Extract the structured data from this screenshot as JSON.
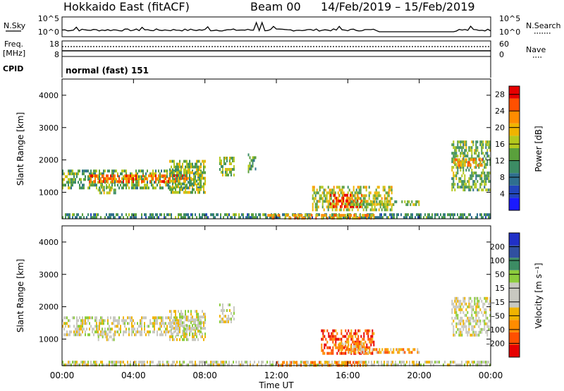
{
  "header": {
    "station": "Hokkaido East (fitACF)",
    "beam": "Beam 00",
    "date_range": "14/Feb/2019 – 15/Feb/2019"
  },
  "status": {
    "nsky_label": "N.Sky",
    "nsky_ticks": [
      "10^5",
      "10^0"
    ],
    "nsky_right_ticks": [
      "10^5",
      "10^0"
    ],
    "nsearch_label": "N.Search",
    "freq_label_1": "Freq.",
    "freq_label_2": "[MHz]",
    "freq_ticks": [
      "18",
      "8"
    ],
    "nave_ticks": [
      "60",
      "0"
    ],
    "nave_label": "Nave",
    "cpid_label": "CPID",
    "cpid_value": "normal (fast) 151"
  },
  "colors": {
    "power_scale": [
      "#1a1aff",
      "#2244bb",
      "#2f6f8f",
      "#3c8c64",
      "#5aa03c",
      "#b4c81e",
      "#f0b400",
      "#ff8c00",
      "#ff5000",
      "#e60000"
    ],
    "velocity_scale": [
      "#e60000",
      "#ff5000",
      "#ff8c00",
      "#f0b400",
      "#c8c8c0",
      "#c8c8c0",
      "#8ccc3c",
      "#3c8c64",
      "#3050a0",
      "#2030c8"
    ],
    "ground_scatter": "#c8c8c0"
  },
  "chart_data": [
    {
      "type": "heatmap",
      "panel": "power",
      "ylabel": "Slant Range [km]",
      "yticks": [
        "1000",
        "2000",
        "3000",
        "4000"
      ],
      "ylim": [
        180,
        4500
      ],
      "xlim": [
        0,
        24
      ],
      "colorbar_label": "Power [dB]",
      "colorbar_ticks": [
        "4",
        "8",
        "12",
        "16",
        "20",
        "24",
        "28"
      ],
      "colorbar_range": [
        0,
        30
      ],
      "regions": [
        {
          "t0": 0.0,
          "t1": 7.8,
          "r0": 1100,
          "r1": 1700,
          "level": 0.45
        },
        {
          "t0": 1.5,
          "t1": 7.0,
          "r0": 1300,
          "r1": 1550,
          "level": 0.8
        },
        {
          "t0": 2.0,
          "t1": 3.0,
          "r0": 950,
          "r1": 1200,
          "level": 0.5
        },
        {
          "t0": 6.0,
          "t1": 8.0,
          "r0": 1000,
          "r1": 2000,
          "level": 0.5
        },
        {
          "t0": 8.8,
          "t1": 9.6,
          "r0": 1500,
          "r1": 2100,
          "level": 0.5
        },
        {
          "t0": 10.4,
          "t1": 10.8,
          "r0": 1600,
          "r1": 2200,
          "level": 0.4
        },
        {
          "t0": 14.0,
          "t1": 18.5,
          "r0": 500,
          "r1": 1200,
          "level": 0.55
        },
        {
          "t0": 15.0,
          "t1": 16.8,
          "r0": 600,
          "r1": 950,
          "level": 0.85
        },
        {
          "t0": 16.0,
          "t1": 20.0,
          "r0": 600,
          "r1": 750,
          "level": 0.5
        },
        {
          "t0": 21.8,
          "t1": 24.0,
          "r0": 1100,
          "r1": 2600,
          "level": 0.45
        },
        {
          "t0": 21.9,
          "t1": 23.5,
          "r0": 1850,
          "r1": 2050,
          "level": 0.7
        },
        {
          "t0": 0.0,
          "t1": 24.0,
          "r0": 200,
          "r1": 350,
          "level": 0.35
        },
        {
          "t0": 11.5,
          "t1": 17.5,
          "r0": 200,
          "r1": 330,
          "level": 0.7
        }
      ]
    },
    {
      "type": "heatmap",
      "panel": "velocity",
      "ylabel": "Slant Range [km]",
      "yticks": [
        "1000",
        "2000",
        "3000",
        "4000"
      ],
      "ylim": [
        180,
        4500
      ],
      "xlim": [
        0,
        24
      ],
      "colorbar_label": "Velocity [m s⁻¹]",
      "colorbar_ticks": [
        "-200",
        "-100",
        "-50",
        "-15",
        "15",
        "50",
        "100",
        "200"
      ],
      "regions": [
        {
          "t0": 0.0,
          "t1": 7.8,
          "r0": 1100,
          "r1": 1700,
          "level": 0.5
        },
        {
          "t0": 2.0,
          "t1": 3.0,
          "r0": 950,
          "r1": 1200,
          "level": 0.5
        },
        {
          "t0": 6.0,
          "t1": 8.0,
          "r0": 1000,
          "r1": 1900,
          "level": 0.5
        },
        {
          "t0": 8.8,
          "t1": 9.6,
          "r0": 1500,
          "r1": 2100,
          "level": 0.5
        },
        {
          "t0": 21.8,
          "t1": 24.0,
          "r0": 1100,
          "r1": 2300,
          "level": 0.5
        },
        {
          "t0": 14.5,
          "t1": 17.5,
          "r0": 600,
          "r1": 1300,
          "level": 0.15
        },
        {
          "t0": 15.5,
          "t1": 17.0,
          "r0": 650,
          "r1": 900,
          "level": 0.3
        },
        {
          "t0": 16.0,
          "t1": 20.0,
          "r0": 600,
          "r1": 720,
          "level": 0.3
        },
        {
          "t0": 0.0,
          "t1": 24.0,
          "r0": 200,
          "r1": 330,
          "level": 0.5
        },
        {
          "t0": 12.0,
          "t1": 17.0,
          "r0": 200,
          "r1": 320,
          "level": 0.3
        }
      ]
    }
  ],
  "x_axis": {
    "ticks": [
      "00:00",
      "04:00",
      "08:00",
      "12:00",
      "16:00",
      "20:00",
      "00:00"
    ],
    "label": "Time UT"
  }
}
